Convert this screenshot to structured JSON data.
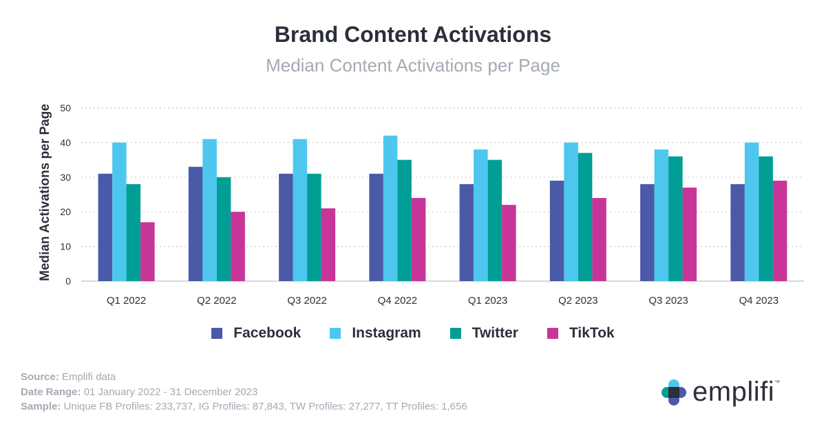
{
  "title": "Brand Content Activations",
  "subtitle": "Median Content Activations per Page",
  "chart_data": {
    "type": "bar",
    "title": "Brand Content Activations",
    "subtitle": "Median Content Activations per Page",
    "xlabel": "",
    "ylabel": "Median Activations per Page",
    "ylim": [
      0,
      50
    ],
    "yticks": [
      0,
      10,
      20,
      30,
      40,
      50
    ],
    "grid": true,
    "legend_position": "bottom",
    "categories": [
      "Q1 2022",
      "Q2 2022",
      "Q3 2022",
      "Q4 2022",
      "Q1 2023",
      "Q2 2023",
      "Q3 2023",
      "Q4 2023"
    ],
    "series": [
      {
        "name": "Facebook",
        "color": "#4a5aa8",
        "values": [
          31,
          33,
          31,
          31,
          28,
          29,
          28,
          28
        ]
      },
      {
        "name": "Instagram",
        "color": "#4dc7ee",
        "values": [
          40,
          41,
          41,
          42,
          38,
          40,
          38,
          40
        ]
      },
      {
        "name": "Twitter",
        "color": "#009e95",
        "values": [
          28,
          30,
          31,
          35,
          35,
          37,
          36,
          36
        ]
      },
      {
        "name": "TikTok",
        "color": "#c83599",
        "values": [
          17,
          20,
          21,
          24,
          22,
          24,
          27,
          29
        ]
      }
    ]
  },
  "footer": {
    "source_label": "Source:",
    "source_value": " Emplifi data",
    "date_label": "Date Range:",
    "date_value": " 01 January 2022 - 31 December 2023",
    "sample_label": "Sample:",
    "sample_value": " Unique FB Profiles: 233,737, IG Profiles: 87,843, TW Profiles: 27,277, TT Profiles: 1,656"
  },
  "logo": {
    "text": "emplifi",
    "tm": "™"
  }
}
